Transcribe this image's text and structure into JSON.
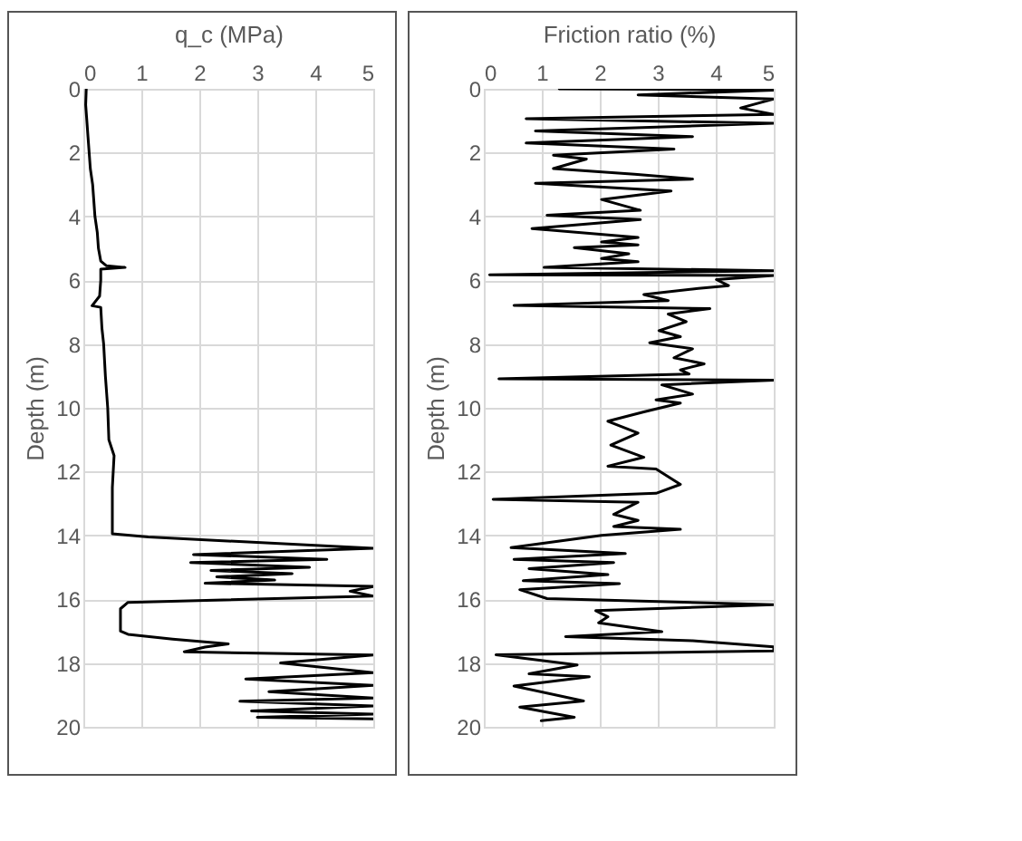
{
  "chart_data": [
    {
      "type": "line",
      "xlabel": "q_c (MPa)",
      "ylabel": "Depth (m)",
      "xlim": [
        0,
        5
      ],
      "xticks": [
        0,
        1,
        2,
        3,
        4,
        5
      ],
      "ylim": [
        20,
        0
      ],
      "yticks": [
        0,
        2,
        4,
        6,
        8,
        10,
        12,
        14,
        16,
        18,
        20
      ],
      "grid": true,
      "series": [
        {
          "color": "#000000",
          "x": [
            0.05,
            0.04,
            0.06,
            0.08,
            0.1,
            0.12,
            0.16,
            0.18,
            0.2,
            0.24,
            0.26,
            0.3,
            0.4,
            0.72,
            0.3,
            0.3,
            0.28,
            0.15,
            0.3,
            0.32,
            0.35,
            0.38,
            0.42,
            0.44,
            0.53,
            0.5,
            0.5,
            0.5,
            1.12,
            5,
            1.9,
            4.2,
            1.85,
            3.9,
            2.2,
            3.6,
            2.3,
            3.3,
            2.1,
            5,
            4.6,
            5,
            0.77,
            0.64,
            0.64,
            0.77,
            1.54,
            2.5,
            2.1,
            1.74,
            5,
            3.4,
            5,
            2.8,
            5,
            3.2,
            5,
            2.7,
            5,
            2.9,
            5,
            3.0,
            5
          ],
          "values": [
            0,
            0.5,
            1,
            1.5,
            2,
            2.5,
            3,
            3.5,
            4,
            4.5,
            5,
            5.4,
            5.55,
            5.6,
            5.65,
            6,
            6.5,
            6.8,
            6.85,
            7.5,
            8,
            9,
            10,
            11,
            11.5,
            12.5,
            13.8,
            13.95,
            14.05,
            14.4,
            14.6,
            14.75,
            14.85,
            15.0,
            15.1,
            15.2,
            15.3,
            15.4,
            15.5,
            15.6,
            15.75,
            15.9,
            16.1,
            16.3,
            17.0,
            17.1,
            17.25,
            17.4,
            17.5,
            17.65,
            17.75,
            18.0,
            18.3,
            18.5,
            18.7,
            18.9,
            19.1,
            19.2,
            19.35,
            19.5,
            19.6,
            19.7,
            19.75
          ]
        }
      ]
    },
    {
      "type": "line",
      "xlabel": "Friction ratio (%)",
      "ylabel": "Depth (m)",
      "xlim": [
        0,
        5
      ],
      "xticks": [
        0,
        1,
        2,
        3,
        4,
        5
      ],
      "ylim": [
        20,
        0
      ],
      "yticks": [
        0,
        2,
        4,
        6,
        8,
        10,
        12,
        14,
        16,
        18,
        20
      ],
      "grid": true,
      "series": [
        {
          "color": "#000000",
          "x": [
            1.3,
            5,
            2.66,
            5,
            4.43,
            5,
            0.73,
            5,
            0.89,
            3.6,
            0.73,
            3.28,
            1.2,
            1.77,
            1.2,
            2.6,
            3.6,
            0.89,
            3.23,
            2.03,
            2.7,
            1.09,
            2.7,
            0.83,
            2.66,
            2.03,
            2.66,
            1.56,
            2.5,
            2.03,
            2.66,
            1.04,
            5,
            0.1,
            5,
            4.01,
            4.22,
            3.7,
            2.76,
            3.18,
            0.52,
            3.9,
            3.18,
            3.49,
            3.02,
            3.39,
            2.86,
            3.6,
            3.28,
            3.8,
            3.39,
            3.54,
            0.26,
            5,
            3.07,
            3.6,
            2.97,
            3.39,
            2.76,
            2.14,
            2.66,
            2.19,
            2.76,
            2.14,
            2.97,
            3.39,
            2.97,
            0.16,
            2.66,
            2.24,
            2.66,
            2.24,
            3.39,
            2.03,
            0.47,
            2.44,
            0.52,
            2.24,
            0.78,
            2.14,
            0.68,
            2.34,
            0.62,
            1.09,
            5,
            1.93,
            2.14,
            1.98,
            3.07,
            1.41,
            3.6,
            5,
            5,
            0.21,
            1.61,
            0.78,
            1.82,
            0.52,
            1.72,
            0.62,
            1.56,
            0.99
          ],
          "values": [
            0,
            0.04,
            0.19,
            0.32,
            0.6,
            0.8,
            0.94,
            1.08,
            1.32,
            1.5,
            1.7,
            1.89,
            2.08,
            2.2,
            2.5,
            2.68,
            2.83,
            2.96,
            3.2,
            3.47,
            3.81,
            3.96,
            4.1,
            4.38,
            4.66,
            4.8,
            4.89,
            4.98,
            5.17,
            5.32,
            5.42,
            5.6,
            5.7,
            5.83,
            5.85,
            5.98,
            6.17,
            6.26,
            6.45,
            6.64,
            6.79,
            6.89,
            7.06,
            7.3,
            7.58,
            7.77,
            7.96,
            8.15,
            8.43,
            8.62,
            8.81,
            8.94,
            9.09,
            9.13,
            9.28,
            9.57,
            9.75,
            9.85,
            10.13,
            10.42,
            10.79,
            11.17,
            11.55,
            11.83,
            11.92,
            12.4,
            12.68,
            12.87,
            12.96,
            13.34,
            13.53,
            13.72,
            13.81,
            14.0,
            14.38,
            14.57,
            14.75,
            14.85,
            15.04,
            15.23,
            15.42,
            15.51,
            15.7,
            15.98,
            16.17,
            16.36,
            16.55,
            16.74,
            17.02,
            17.17,
            17.3,
            17.49,
            17.62,
            17.74,
            18.06,
            18.34,
            18.43,
            18.72,
            19.19,
            19.38,
            19.7,
            19.81
          ]
        }
      ]
    }
  ]
}
